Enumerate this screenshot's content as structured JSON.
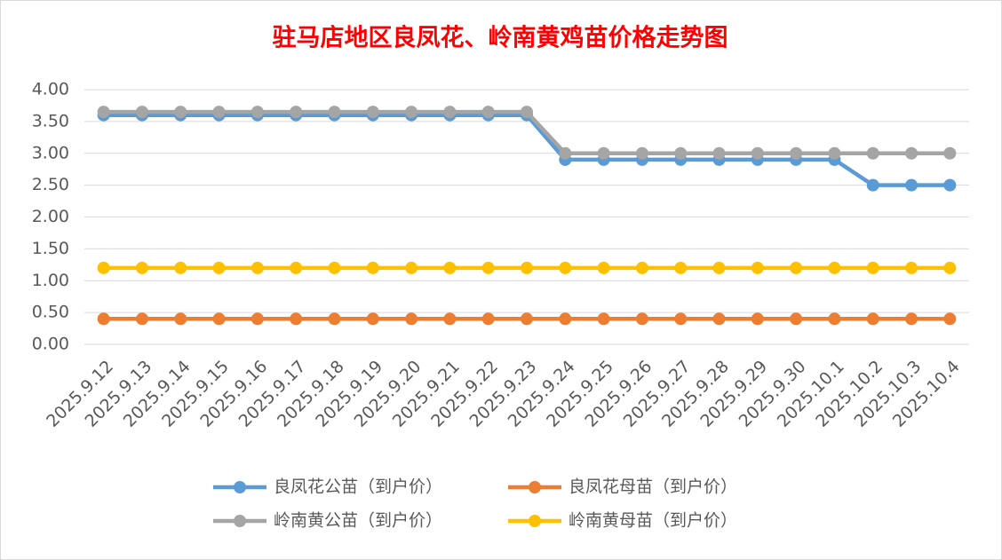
{
  "chart_data": {
    "type": "line",
    "title": "驻马店地区良凤花、岭南黄鸡苗价格走势图",
    "categories": [
      "2025.9.12",
      "2025.9.13",
      "2025.9.14",
      "2025.9.15",
      "2025.9.16",
      "2025.9.17",
      "2025.9.18",
      "2025.9.19",
      "2025.9.20",
      "2025.9.21",
      "2025.9.22",
      "2025.9.23",
      "2025.9.24",
      "2025.9.25",
      "2025.9.26",
      "2025.9.27",
      "2025.9.28",
      "2025.9.29",
      "2025.9.30",
      "2025.10.1",
      "2025.10.2",
      "2025.10.3",
      "2025.10.4"
    ],
    "series": [
      {
        "name": "良凤花公苗（到户价）",
        "color": "#5b9bd5",
        "values": [
          3.6,
          3.6,
          3.6,
          3.6,
          3.6,
          3.6,
          3.6,
          3.6,
          3.6,
          3.6,
          3.6,
          3.6,
          2.9,
          2.9,
          2.9,
          2.9,
          2.9,
          2.9,
          2.9,
          2.9,
          2.5,
          2.5,
          2.5
        ]
      },
      {
        "name": "良凤花母苗（到户价）",
        "color": "#ed7d31",
        "values": [
          0.4,
          0.4,
          0.4,
          0.4,
          0.4,
          0.4,
          0.4,
          0.4,
          0.4,
          0.4,
          0.4,
          0.4,
          0.4,
          0.4,
          0.4,
          0.4,
          0.4,
          0.4,
          0.4,
          0.4,
          0.4,
          0.4,
          0.4
        ]
      },
      {
        "name": "岭南黄公苗（到户价）",
        "color": "#a5a5a5",
        "values": [
          3.65,
          3.65,
          3.65,
          3.65,
          3.65,
          3.65,
          3.65,
          3.65,
          3.65,
          3.65,
          3.65,
          3.65,
          3.0,
          3.0,
          3.0,
          3.0,
          3.0,
          3.0,
          3.0,
          3.0,
          3.0,
          3.0,
          3.0
        ]
      },
      {
        "name": "岭南黄母苗（到户价）",
        "color": "#ffc000",
        "values": [
          1.2,
          1.2,
          1.2,
          1.2,
          1.2,
          1.2,
          1.2,
          1.2,
          1.2,
          1.2,
          1.2,
          1.2,
          1.2,
          1.2,
          1.2,
          1.2,
          1.2,
          1.2,
          1.2,
          1.2,
          1.2,
          1.2,
          1.2
        ]
      }
    ],
    "ylim": [
      0,
      4
    ],
    "yticks": [
      {
        "value": 0,
        "label": "0.00"
      },
      {
        "value": 0.5,
        "label": "0.50"
      },
      {
        "value": 1,
        "label": "1.00"
      },
      {
        "value": 1.5,
        "label": "1.50"
      },
      {
        "value": 2,
        "label": "2.00"
      },
      {
        "value": 2.5,
        "label": "2.50"
      },
      {
        "value": 3,
        "label": "3.00"
      },
      {
        "value": 3.5,
        "label": "3.50"
      },
      {
        "value": 4,
        "label": "4.00"
      }
    ],
    "grid": true,
    "legend": "bottom"
  }
}
